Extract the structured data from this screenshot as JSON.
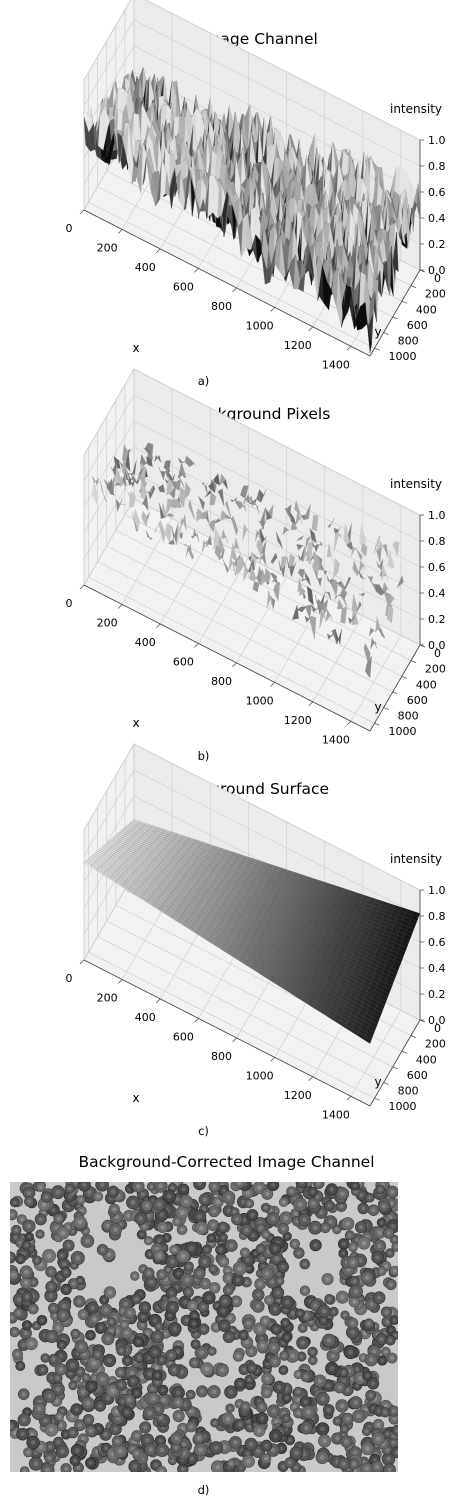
{
  "chart_data": [
    {
      "type": "surface3d",
      "title": "Original Image Channel",
      "caption": "a)",
      "xlabel": "x",
      "ylabel": "y",
      "zlabel": "intensity",
      "xticks": [
        "0",
        "200",
        "400",
        "600",
        "800",
        "1000",
        "1200",
        "1400"
      ],
      "yticks": [
        "0",
        "200",
        "400",
        "600",
        "800",
        "1000"
      ],
      "zticks": [
        "0.0",
        "0.2",
        "0.4",
        "0.6",
        "0.8",
        "1.0"
      ],
      "xlim": [
        0,
        1500
      ],
      "ylim": [
        0,
        1100
      ],
      "zlim": [
        0,
        1
      ],
      "colormap": "gray",
      "surface": {
        "kind": "noisy",
        "base": [
          0.62,
          0.3,
          0.55,
          0.25
        ],
        "noise": 0.22
      }
    },
    {
      "type": "surface3d",
      "title": "Isolated Background Pixels",
      "caption": "b)",
      "xlabel": "x",
      "ylabel": "y",
      "zlabel": "intensity",
      "xticks": [
        "0",
        "200",
        "400",
        "600",
        "800",
        "1000",
        "1200",
        "1400"
      ],
      "yticks": [
        "0",
        "200",
        "400",
        "600",
        "800",
        "1000"
      ],
      "zticks": [
        "0.0",
        "0.2",
        "0.4",
        "0.6",
        "0.8",
        "1.0"
      ],
      "xlim": [
        0,
        1500
      ],
      "ylim": [
        0,
        1100
      ],
      "zlim": [
        0,
        1
      ],
      "colormap": "gray",
      "surface": {
        "kind": "sparse",
        "base": [
          0.72,
          0.48,
          0.7,
          0.42
        ],
        "noise": 0.08
      }
    },
    {
      "type": "surface3d",
      "title": "Fitted Background Surface",
      "caption": "c)",
      "xlabel": "x",
      "ylabel": "y",
      "zlabel": "intensity",
      "xticks": [
        "0",
        "200",
        "400",
        "600",
        "800",
        "1000",
        "1200",
        "1400"
      ],
      "yticks": [
        "0",
        "200",
        "400",
        "600",
        "800",
        "1000"
      ],
      "zticks": [
        "0.0",
        "0.2",
        "0.4",
        "0.6",
        "0.8",
        "1.0"
      ],
      "xlim": [
        0,
        1500
      ],
      "ylim": [
        0,
        1100
      ],
      "zlim": [
        0,
        1
      ],
      "colormap": "gray",
      "surface": {
        "kind": "smooth",
        "base": [
          0.75,
          0.48,
          0.82,
          0.42
        ],
        "noise": 0
      }
    },
    {
      "type": "image",
      "title": "Background-Corrected Image Channel",
      "caption": "d)",
      "colormap": "gray"
    }
  ]
}
